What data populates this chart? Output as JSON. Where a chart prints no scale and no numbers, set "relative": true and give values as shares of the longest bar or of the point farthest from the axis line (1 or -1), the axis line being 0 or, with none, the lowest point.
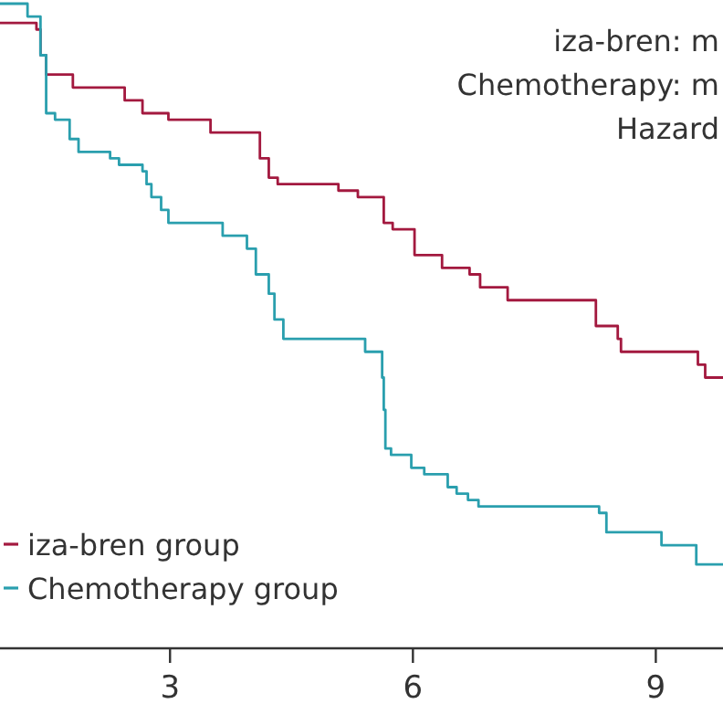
{
  "chart_data": {
    "type": "step",
    "relative": true,
    "xlim": [
      0.9,
      9.83
    ],
    "xticks": [
      3,
      6,
      9
    ],
    "legend": "bottom left",
    "annotations": [
      "iza-bren: m",
      "Chemotherapy: m",
      "Hazard"
    ],
    "series": [
      {
        "name": "iza-bren group",
        "color": "#a3193f",
        "x": [
          0.9,
          1.35,
          1.4,
          1.47,
          1.8,
          2.44,
          2.66,
          2.98,
          3.5,
          4.11,
          4.22,
          4.33,
          5.08,
          5.32,
          5.64,
          5.75,
          6.02,
          6.36,
          6.7,
          6.83,
          7.17,
          8.26,
          8.53,
          8.57,
          9.52,
          9.61,
          9.83
        ],
        "values": [
          0.97,
          0.96,
          0.92,
          0.89,
          0.87,
          0.85,
          0.83,
          0.82,
          0.8,
          0.76,
          0.73,
          0.72,
          0.71,
          0.7,
          0.66,
          0.65,
          0.61,
          0.59,
          0.58,
          0.56,
          0.54,
          0.5,
          0.48,
          0.46,
          0.44,
          0.42,
          0.42
        ]
      },
      {
        "name": "Chemotherapy group",
        "color": "#2a9fae",
        "x": [
          0.9,
          1.24,
          1.4,
          1.47,
          1.58,
          1.76,
          1.87,
          2.26,
          2.37,
          2.66,
          2.71,
          2.77,
          2.89,
          2.98,
          3.65,
          3.95,
          4.06,
          4.22,
          4.29,
          4.4,
          5.41,
          5.62,
          5.64,
          5.66,
          5.73,
          5.98,
          6.14,
          6.43,
          6.54,
          6.68,
          6.81,
          8.3,
          8.39,
          9.07,
          9.5,
          9.83
        ],
        "values": [
          1.0,
          0.98,
          0.92,
          0.83,
          0.82,
          0.79,
          0.77,
          0.76,
          0.75,
          0.74,
          0.72,
          0.7,
          0.68,
          0.66,
          0.64,
          0.62,
          0.58,
          0.55,
          0.51,
          0.48,
          0.46,
          0.42,
          0.37,
          0.31,
          0.3,
          0.28,
          0.27,
          0.25,
          0.24,
          0.23,
          0.22,
          0.21,
          0.18,
          0.16,
          0.13,
          0.13
        ]
      }
    ]
  }
}
